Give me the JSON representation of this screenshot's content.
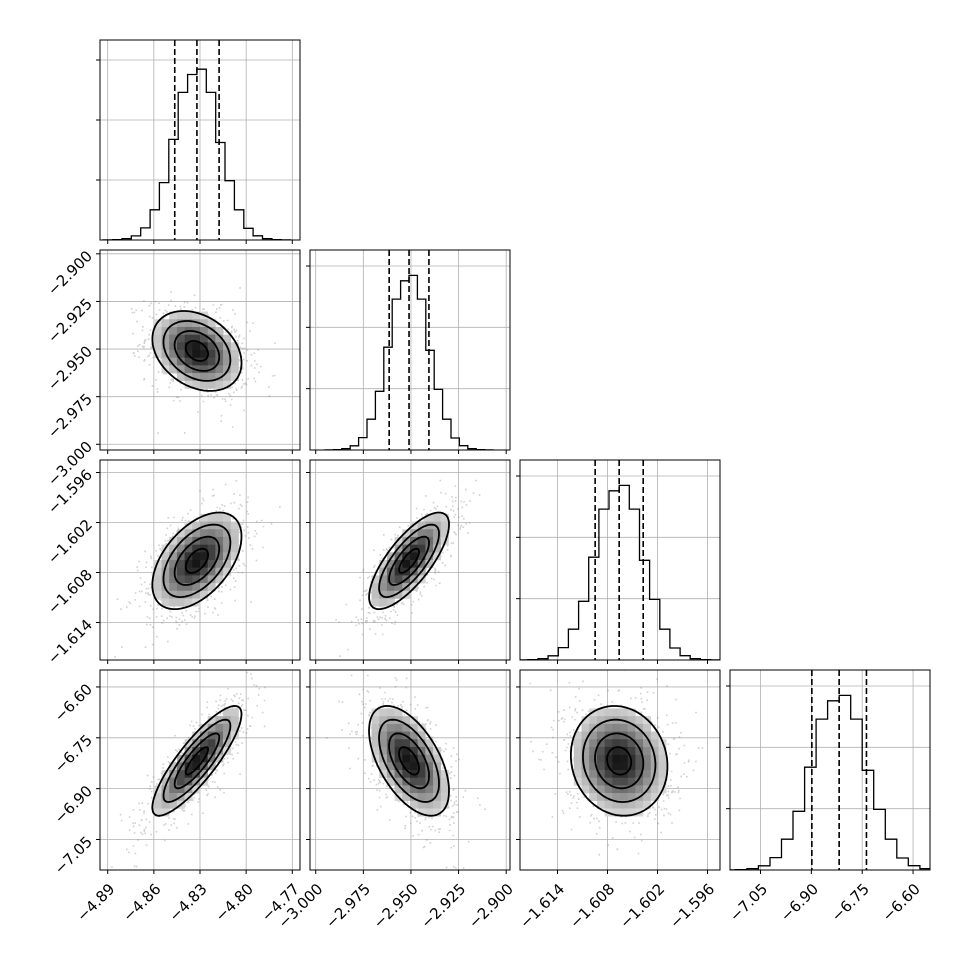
{
  "chart_data": {
    "type": "corner",
    "n_params": 4,
    "params": [
      {
        "mean": -4.832,
        "sd": 0.0145,
        "range": [
          -4.895,
          -4.765
        ],
        "ticks": [
          -4.89,
          -4.86,
          -4.83,
          -4.8,
          -4.77
        ],
        "tick_labels": [
          "−4.89",
          "−4.86",
          "−4.83",
          "−4.80",
          "−4.77"
        ]
      },
      {
        "mean": -2.951,
        "sd": 0.0105,
        "range": [
          -3.003,
          -2.898
        ],
        "ticks": [
          -3.0,
          -2.975,
          -2.95,
          -2.925,
          -2.9
        ],
        "tick_labels": [
          "−3.000",
          "−2.975",
          "−2.950",
          "−2.925",
          "−2.900"
        ]
      },
      {
        "mean": -1.6066,
        "sd": 0.0029,
        "range": [
          -1.6185,
          -1.5945
        ],
        "ticks": [
          -1.614,
          -1.608,
          -1.602,
          -1.596
        ],
        "tick_labels": [
          "−1.614",
          "−1.608",
          "−1.602",
          "−1.596"
        ]
      },
      {
        "mean": -6.818,
        "sd": 0.081,
        "range": [
          -7.14,
          -6.55
        ],
        "ticks": [
          -7.05,
          -6.9,
          -6.75,
          -6.6
        ],
        "tick_labels": [
          "−7.05",
          "−6.90",
          "−6.75",
          "−6.60"
        ]
      }
    ],
    "quantiles": [
      0.16,
      0.5,
      0.84
    ],
    "correlations": [
      [
        1.0,
        -0.3,
        0.5,
        0.85
      ],
      [
        -0.3,
        1.0,
        0.75,
        -0.55
      ],
      [
        0.5,
        0.75,
        1.0,
        -0.1
      ],
      [
        0.85,
        -0.55,
        -0.1,
        1.0
      ]
    ],
    "histogram_peak_fraction": [
      0.9,
      0.92,
      0.92,
      0.92
    ],
    "contour_levels_sigma": [
      0.5,
      1.0,
      1.5,
      2.0
    ],
    "grid": true,
    "colors": {
      "line": "#000000",
      "grid": "#b0b0b0",
      "points": "#7a7a7a",
      "density_dark": "#000000"
    }
  }
}
